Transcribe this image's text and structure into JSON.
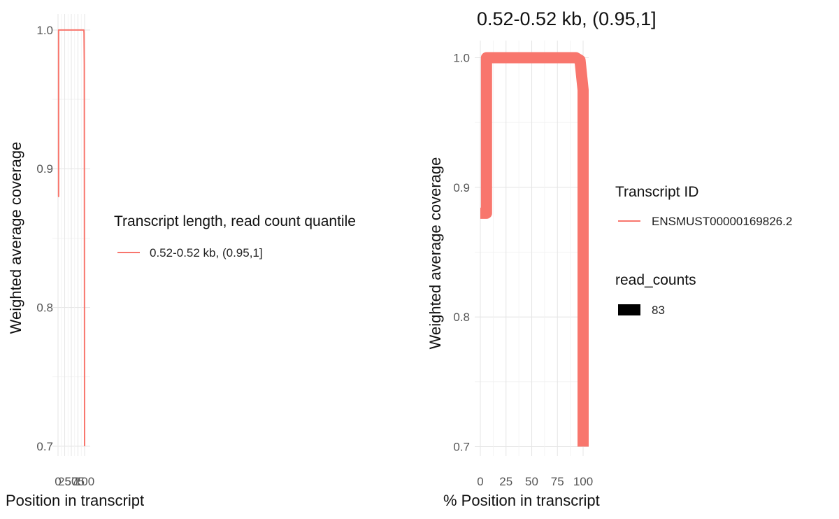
{
  "chart_data": [
    {
      "type": "line",
      "title": "",
      "xlabel": "Position in transcript",
      "ylabel": "Weighted average coverage",
      "xlim": [
        0,
        100
      ],
      "ylim": [
        0.69,
        1.015
      ],
      "x_ticks": [
        0,
        25,
        50,
        75,
        100
      ],
      "y_ticks": [
        0.7,
        0.8,
        0.9,
        1.0
      ],
      "y_tick_labels": [
        "0.7",
        "0.8",
        "0.9",
        "1.0"
      ],
      "grid": true,
      "legend": {
        "title": "Transcript length, read count quantile",
        "placement": "right",
        "entries": [
          {
            "label": "0.52-0.52 kb, (0.95,1]",
            "color": "#F8766D"
          }
        ]
      },
      "series": [
        {
          "name": "0.52-0.52 kb, (0.95,1]",
          "color": "#F8766D",
          "x": [
            0,
            2,
            2,
            97,
            98,
            99,
            100
          ],
          "y": [
            0.88,
            0.88,
            1.0,
            1.0,
            0.998,
            0.975,
            0.7
          ]
        }
      ]
    },
    {
      "type": "line",
      "title": "0.52-0.52 kb, (0.95,1]",
      "xlabel": "% Position in transcript",
      "ylabel": "Weighted average coverage",
      "xlim": [
        0,
        100
      ],
      "ylim": [
        0.69,
        1.015
      ],
      "x_ticks": [
        0,
        25,
        50,
        75,
        100
      ],
      "y_ticks": [
        0.7,
        0.8,
        0.9,
        1.0
      ],
      "y_tick_labels": [
        "0.7",
        "0.8",
        "0.9",
        "1.0"
      ],
      "grid": true,
      "legend": {
        "title": "Transcript ID",
        "placement": "right",
        "entries": [
          {
            "label": "ENSMUST00000169826.2",
            "color": "#F8766D"
          }
        ],
        "size_title": "read_counts",
        "size_entries": [
          {
            "label": "83",
            "color": "#000000"
          }
        ]
      },
      "series": [
        {
          "name": "ENSMUST00000169826.2",
          "color": "#F8766D",
          "read_counts": 83,
          "x": [
            0,
            6,
            6,
            93,
            97,
            100,
            100
          ],
          "y": [
            0.88,
            0.88,
            1.0,
            1.0,
            0.998,
            0.975,
            0.7
          ]
        }
      ]
    }
  ]
}
